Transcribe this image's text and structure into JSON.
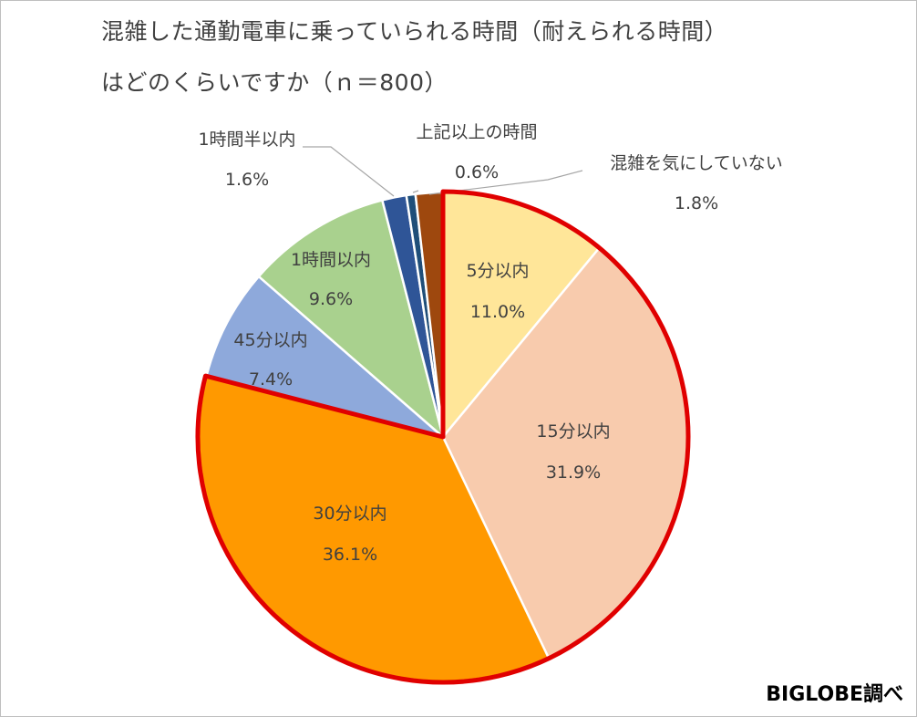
{
  "chart_data": {
    "type": "pie",
    "title": "混雑した通勤電車に乗っていられる時間（耐えられる時間）",
    "subtitle": "はどのくらいですか（ｎ＝800）",
    "start_angle_deg": 0,
    "direction": "clockwise",
    "highlight": "5分以内 〜 30分以内 (red outline)",
    "slices": [
      {
        "label": "5分以内",
        "value": 11.0,
        "value_text": "11.0%",
        "color": "#FFE699"
      },
      {
        "label": "15分以内",
        "value": 31.9,
        "value_text": "31.9%",
        "color": "#F8CBAD"
      },
      {
        "label": "30分以内",
        "value": 36.1,
        "value_text": "36.1%",
        "color": "#FF9900"
      },
      {
        "label": "45分以内",
        "value": 7.4,
        "value_text": "7.4%",
        "color": "#8EA9DB"
      },
      {
        "label": "1時間以内",
        "value": 9.6,
        "value_text": "9.6%",
        "color": "#A9D18E"
      },
      {
        "label": "1時間半以内",
        "value": 1.6,
        "value_text": "1.6%",
        "color": "#2F5597"
      },
      {
        "label": "上記以上の時間",
        "value": 0.6,
        "value_text": "0.6%",
        "color": "#1F4E79"
      },
      {
        "label": "混雑を気にしていない",
        "value": 1.8,
        "value_text": "1.8%",
        "color": "#9E480E"
      }
    ],
    "highlight_color": "#E00000"
  },
  "credit": "BIGLOBE調べ"
}
